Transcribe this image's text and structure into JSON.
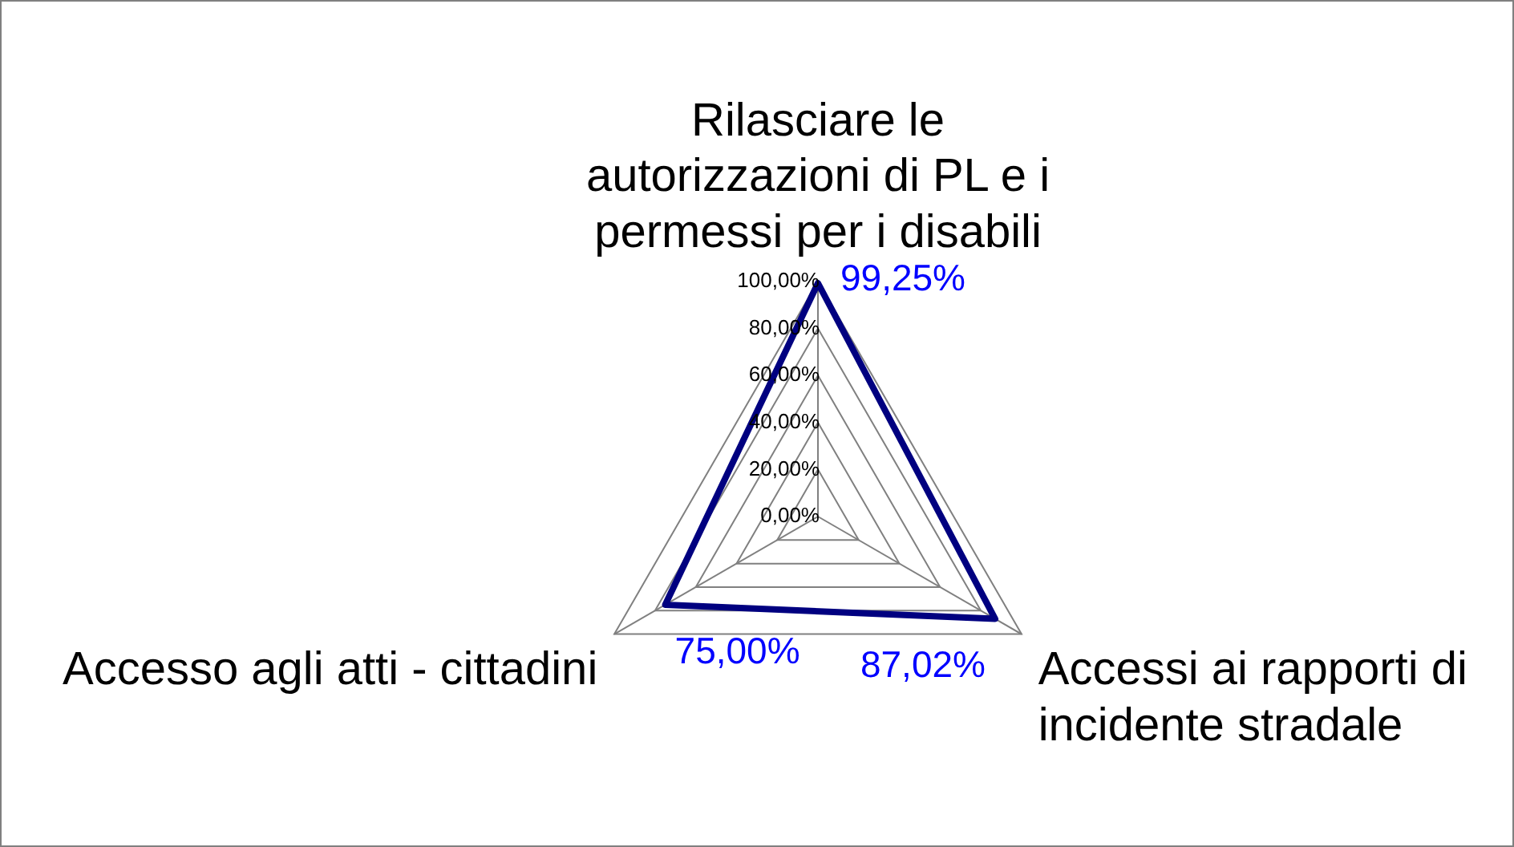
{
  "chart_data": {
    "type": "radar",
    "categories": [
      "Rilasciare le autorizzazioni di PL e i permessi per i disabili",
      "Accessi ai rapporti di incidente stradale",
      "Accesso agli atti - cittadini"
    ],
    "series": [
      {
        "color": "#000080",
        "values": [
          99.25,
          87.02,
          75.0
        ],
        "value_labels": [
          "99,25%",
          "87,02%",
          "75,00%"
        ]
      }
    ],
    "ylim": [
      0,
      100
    ],
    "yticks": [
      {
        "value": 0,
        "label": "0,00%"
      },
      {
        "value": 20,
        "label": "20,00%"
      },
      {
        "value": 40,
        "label": "40,00%"
      },
      {
        "value": 60,
        "label": "60,00%"
      },
      {
        "value": 80,
        "label": "80,00%"
      },
      {
        "value": 100,
        "label": "100,00%"
      }
    ],
    "grid": true,
    "legend": false,
    "marker": "none"
  }
}
